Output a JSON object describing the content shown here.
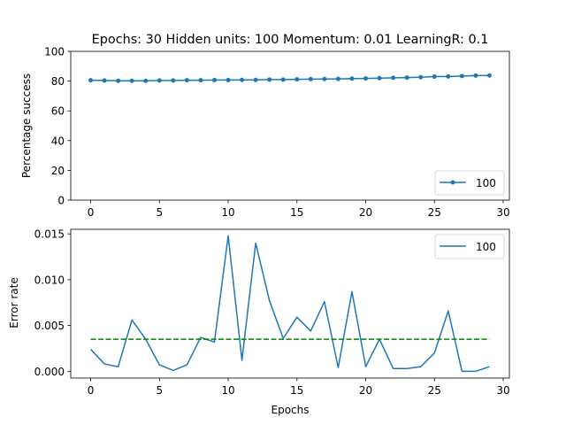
{
  "chart_data": [
    {
      "type": "line",
      "title": "Epochs: 30 Hidden units: 100 Momentum: 0.01 LearningR: 0.1",
      "xlabel": "",
      "ylabel": "Percentage success",
      "xlim": [
        -1.45,
        30.45
      ],
      "ylim": [
        0,
        100
      ],
      "xticks": [
        0,
        5,
        10,
        15,
        20,
        25,
        30
      ],
      "yticks": [
        0,
        20,
        40,
        60,
        80,
        100
      ],
      "grid": false,
      "legend_position": "lower-right",
      "series": [
        {
          "name": "100",
          "color": "#1f77b4",
          "marker": "circle",
          "x": [
            0,
            1,
            2,
            3,
            4,
            5,
            6,
            7,
            8,
            9,
            10,
            11,
            12,
            13,
            14,
            15,
            16,
            17,
            18,
            19,
            20,
            21,
            22,
            23,
            24,
            25,
            26,
            27,
            28,
            29
          ],
          "y": [
            80.6,
            80.4,
            80.2,
            80.2,
            80.2,
            80.4,
            80.4,
            80.6,
            80.6,
            80.7,
            80.7,
            80.8,
            80.8,
            81.0,
            81.0,
            81.2,
            81.3,
            81.4,
            81.5,
            81.7,
            81.8,
            82.0,
            82.2,
            82.4,
            82.6,
            83.0,
            83.1,
            83.4,
            83.7,
            83.8
          ]
        }
      ]
    },
    {
      "type": "line",
      "title": "",
      "xlabel": "Epochs",
      "ylabel": "Error rate",
      "xlim": [
        -1.45,
        30.45
      ],
      "ylim": [
        -0.00074,
        0.0155
      ],
      "xticks": [
        0,
        5,
        10,
        15,
        20,
        25,
        30
      ],
      "yticks": [
        0.0,
        0.005,
        0.01,
        0.015
      ],
      "ytick_labels": [
        "0.000",
        "0.005",
        "0.010",
        "0.015"
      ],
      "grid": false,
      "legend_position": "upper-right",
      "series": [
        {
          "name": "100",
          "color": "#1f77b4",
          "x": [
            0,
            1,
            2,
            3,
            4,
            5,
            6,
            7,
            8,
            9,
            10,
            11,
            12,
            13,
            14,
            15,
            16,
            17,
            18,
            19,
            20,
            21,
            22,
            23,
            24,
            25,
            26,
            27,
            28,
            29
          ],
          "y": [
            0.0024,
            0.0008,
            0.0005,
            0.0056,
            0.0035,
            0.0007,
            0.0001,
            0.0007,
            0.0037,
            0.0032,
            0.0148,
            0.0012,
            0.014,
            0.0077,
            0.0036,
            0.0059,
            0.0044,
            0.0076,
            0.0004,
            0.0087,
            0.0005,
            0.0035,
            0.0003,
            0.0003,
            0.0005,
            0.002,
            0.0066,
            0.0,
            0.0,
            0.0005
          ]
        },
        {
          "name": "",
          "color": "#008000",
          "dashed": true,
          "x": [
            0,
            29
          ],
          "y": [
            0.0035,
            0.0035
          ]
        }
      ]
    }
  ]
}
